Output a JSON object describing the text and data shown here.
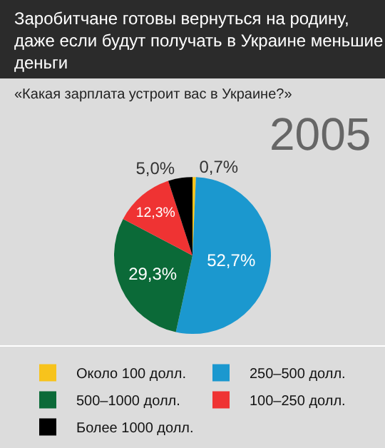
{
  "chart_data": {
    "type": "pie",
    "title": "Заробитчане готовы вернуться на родину, даже если будут получать в Украине меньшие деньги",
    "subtitle": "«Какая зарплата устроит вас в Украине?»",
    "annotations": [
      "2005"
    ],
    "categories": [
      "Около 100 долл.",
      "250–500 долл.",
      "500–1000 долл.",
      "100–250 долл.",
      "Более 1000 долл."
    ],
    "values": [
      0.7,
      52.7,
      29.3,
      12.3,
      5.0
    ],
    "value_labels": [
      "0,7%",
      "52,7%",
      "29,3%",
      "12,3%",
      "5,0%"
    ],
    "colors": [
      "#f7c31c",
      "#1b98cf",
      "#0b6a38",
      "#ef3333",
      "#000000"
    ],
    "legend": "bottom"
  }
}
